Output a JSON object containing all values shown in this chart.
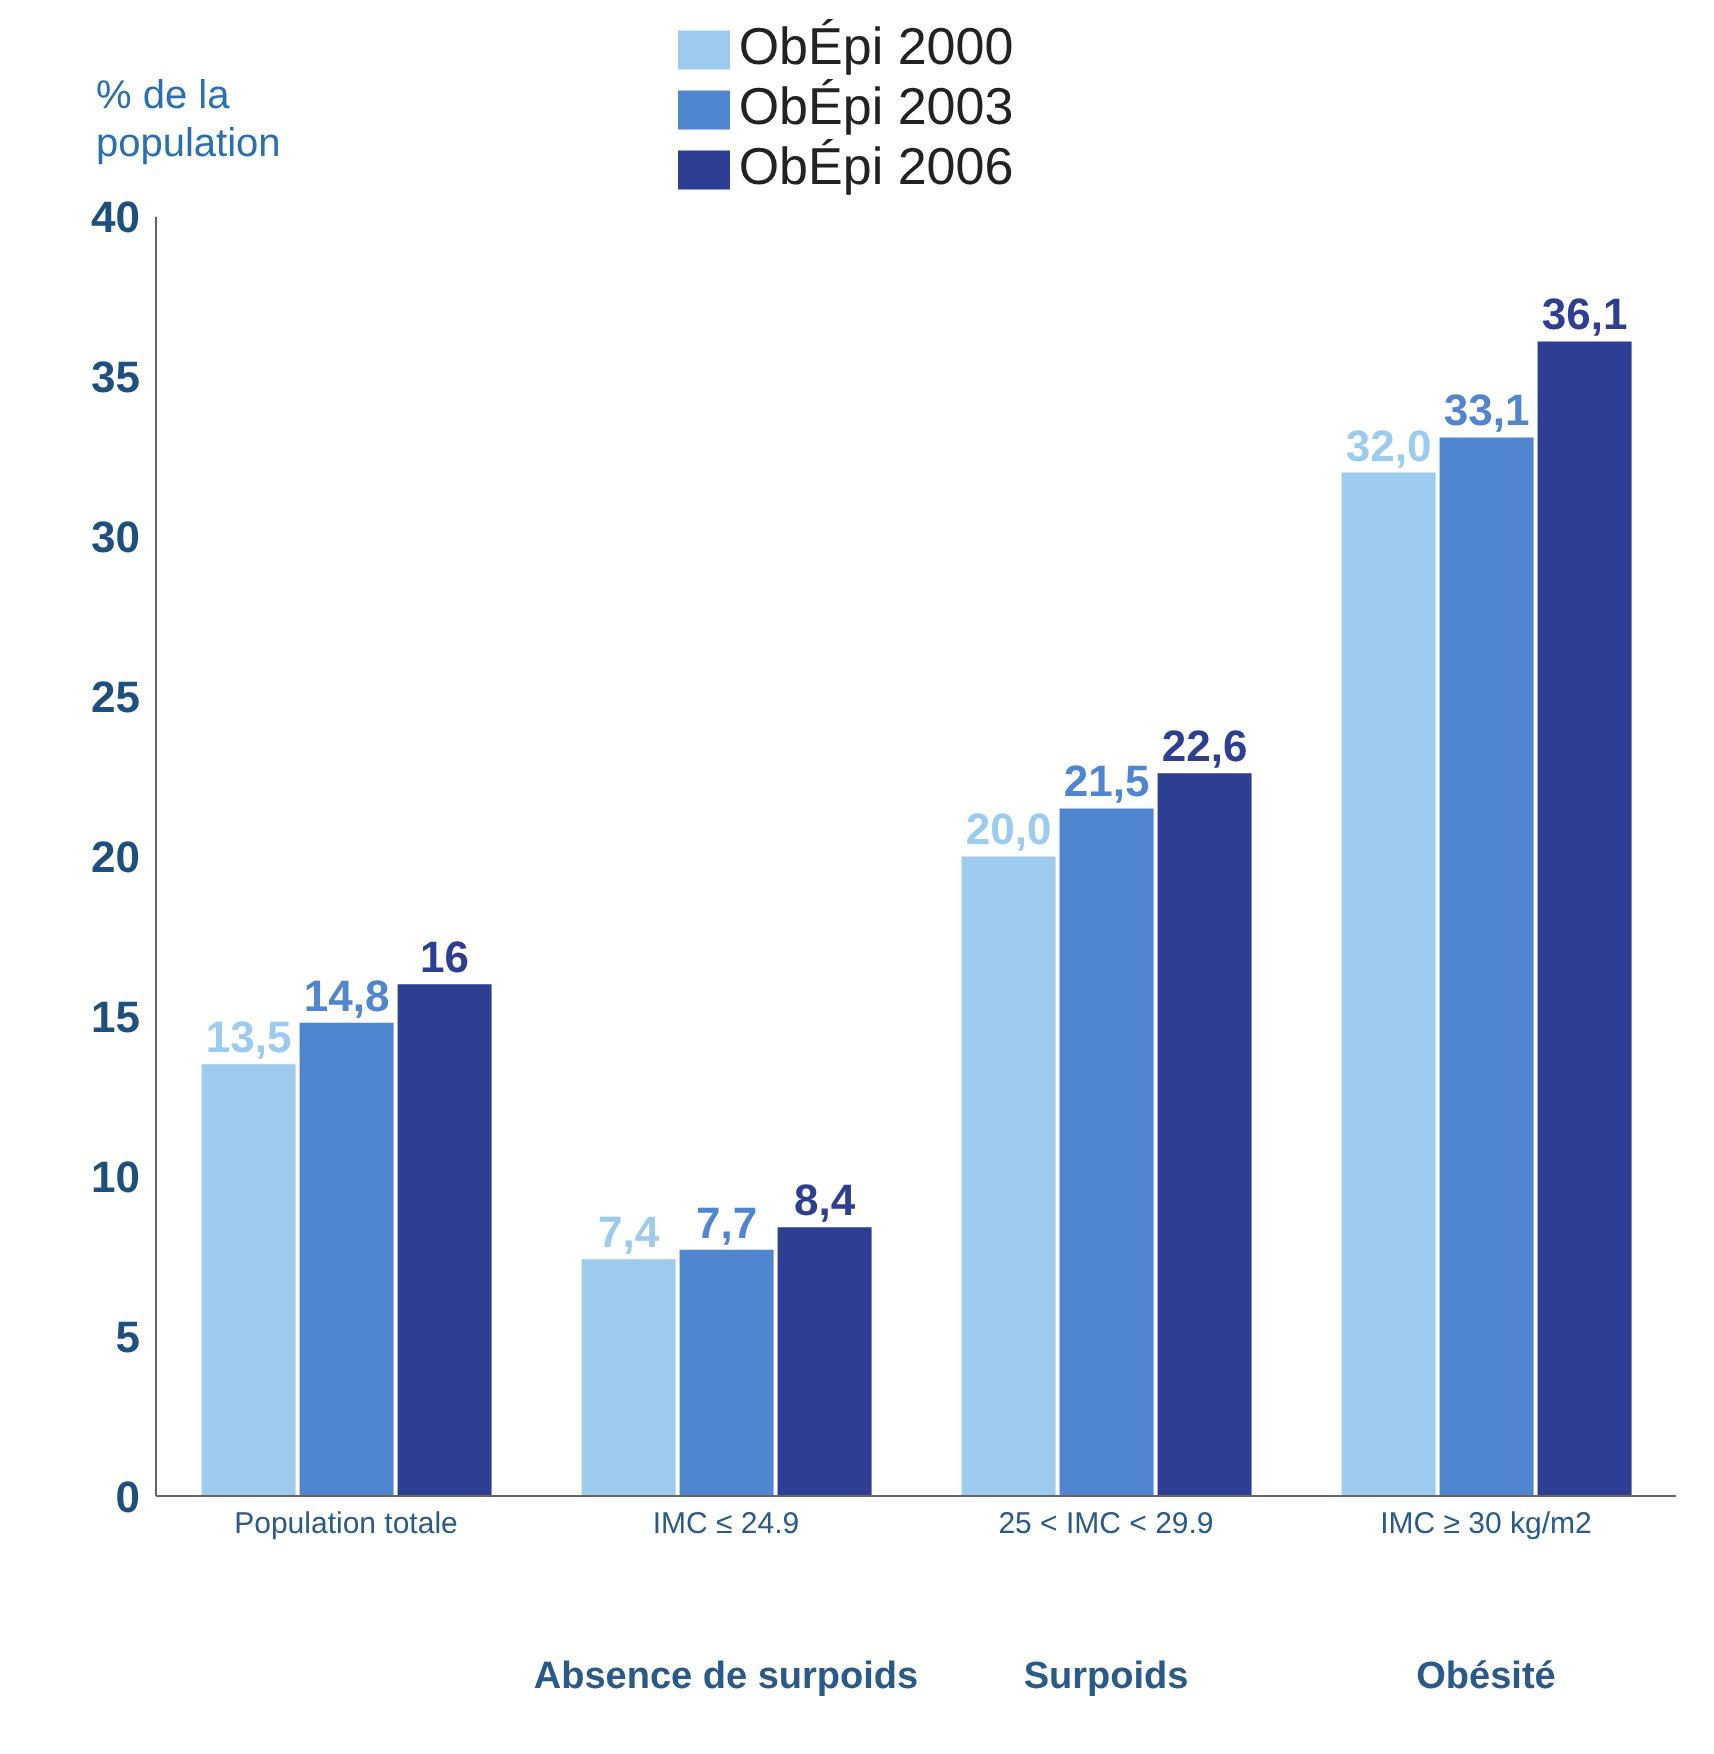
{
  "chart_data": {
    "type": "bar",
    "ylabel": "% de la population",
    "categories": [
      "Population totale",
      "IMC ≤ 24.9",
      "25 < IMC < 29.9",
      "IMC ≥ 30 kg/m2"
    ],
    "series": [
      {
        "name": "ObÉpi 2000",
        "color": "#9ccbee",
        "values": [
          13.5,
          7.4,
          20.0,
          32.0
        ],
        "value_labels": [
          "13,5",
          "7,4",
          "20,0",
          "32,0"
        ]
      },
      {
        "name": "ObÉpi 2003",
        "color": "#4f86cf",
        "values": [
          14.8,
          7.7,
          21.5,
          33.1
        ],
        "value_labels": [
          "14,8",
          "7,7",
          "21,5",
          "33,1"
        ]
      },
      {
        "name": "ObÉpi 2006",
        "color": "#2e3f93",
        "values": [
          16,
          8.4,
          22.6,
          36.1
        ],
        "value_labels": [
          "16",
          "8,4",
          "22,6",
          "36,1"
        ]
      }
    ],
    "ylim": [
      0,
      40
    ],
    "yticks": [
      0,
      5,
      10,
      15,
      20,
      25,
      30,
      35,
      40
    ],
    "grid": false,
    "legend": "top",
    "annotations": [
      "Absence de surpoids",
      "Surpoids",
      "Obésité"
    ]
  }
}
